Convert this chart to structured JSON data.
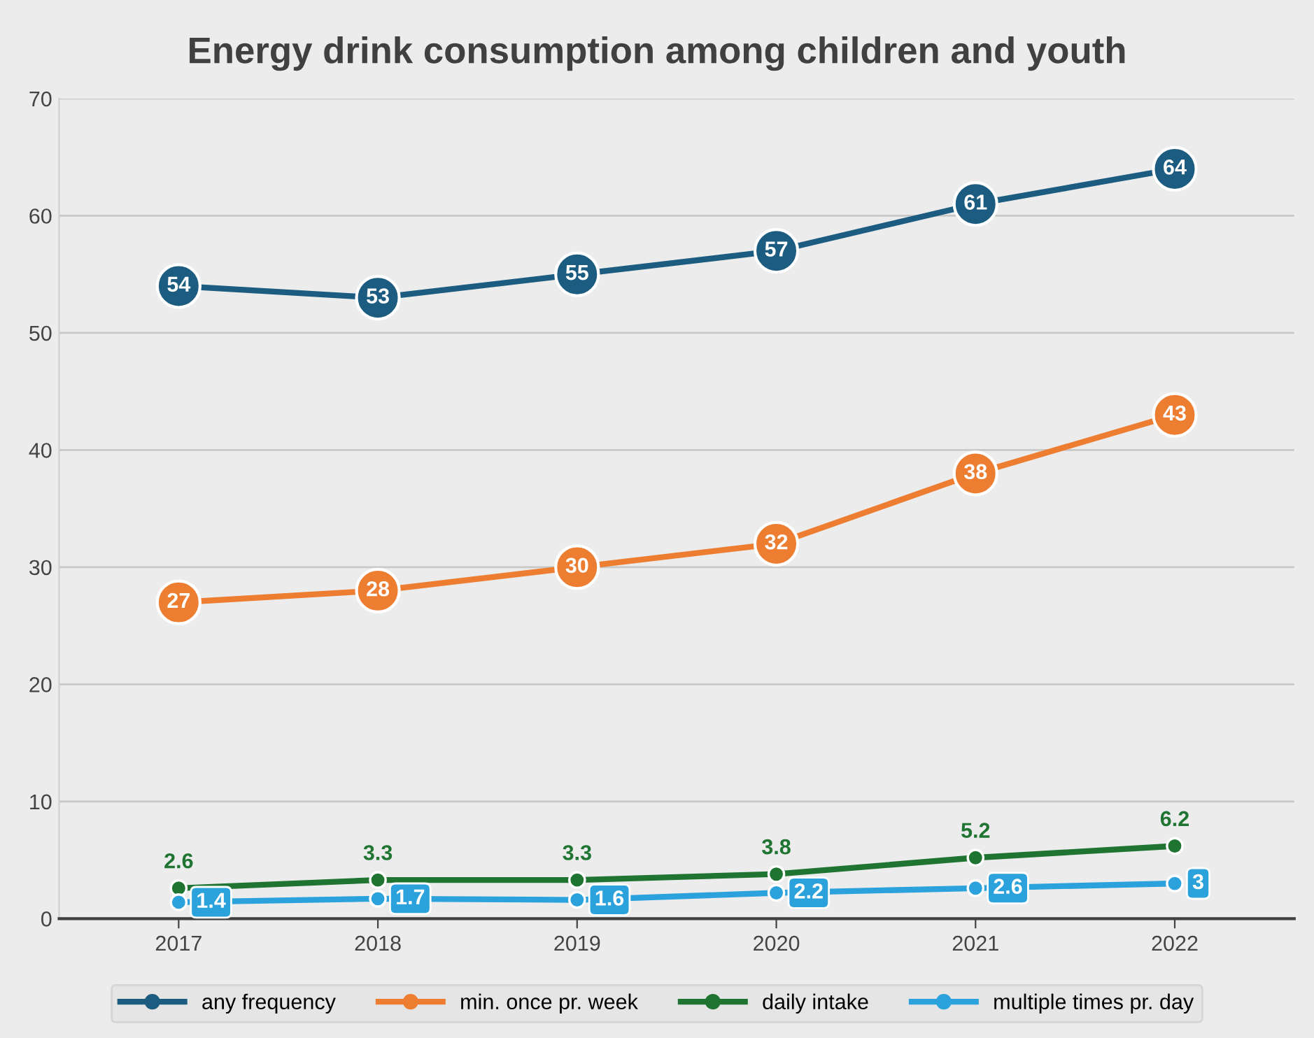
{
  "chart_data": {
    "type": "line",
    "title": "Energy drink consumption among children and youth",
    "categories": [
      "2017",
      "2018",
      "2019",
      "2020",
      "2021",
      "2022"
    ],
    "series": [
      {
        "name": "any frequency",
        "color": "#1b5c80",
        "values": [
          54,
          53,
          55,
          57,
          61,
          64
        ]
      },
      {
        "name": "min. once pr. week",
        "color": "#ed7d31",
        "values": [
          27,
          28,
          30,
          32,
          38,
          43
        ]
      },
      {
        "name": "daily intake",
        "color": "#1e7430",
        "values": [
          2.6,
          3.3,
          3.3,
          3.8,
          5.2,
          6.2
        ]
      },
      {
        "name": "multiple times pr. day",
        "color": "#2ba2dc",
        "values": [
          1.4,
          1.7,
          1.6,
          2.2,
          2.6,
          3
        ]
      }
    ],
    "ylim": [
      0,
      70
    ],
    "yticks": [
      0,
      10,
      20,
      30,
      40,
      50,
      60,
      70
    ],
    "grid": "y",
    "legend": "bottom",
    "marker": "circle",
    "line_style": "solid",
    "data_labels": true
  }
}
